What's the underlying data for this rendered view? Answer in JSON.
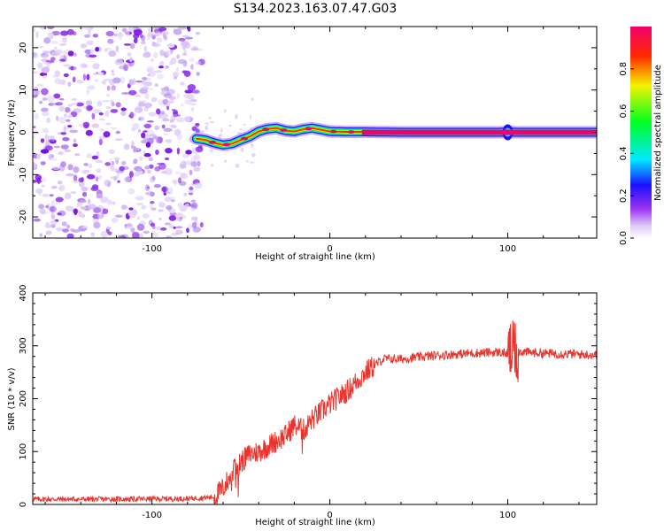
{
  "title": "S134.2023.163.07.47.G03",
  "chart_data": [
    {
      "type": "heatmap",
      "xlabel": "Height of straight line (km)",
      "ylabel": "Frequency (Hz)",
      "xlim": [
        -167,
        150
      ],
      "ylim": [
        -25,
        25
      ],
      "x_ticks": [
        -100,
        0,
        100
      ],
      "y_ticks": [
        -20,
        -10,
        0,
        10,
        20
      ],
      "noise_region_x": [
        -167,
        -72
      ],
      "ridge": {
        "x": [
          -75,
          -70,
          -65,
          -60,
          -55,
          -50,
          -45,
          -40,
          -35,
          -30,
          -25,
          -20,
          -15,
          -10,
          -5,
          0,
          10,
          20,
          40,
          60,
          80,
          95,
          100,
          105,
          120,
          150
        ],
        "freq": [
          -1.5,
          -1.8,
          -2.5,
          -3.0,
          -2.7,
          -1.8,
          -1.0,
          0.2,
          0.8,
          1.0,
          0.4,
          0.2,
          0.7,
          1.0,
          0.6,
          0.2,
          0.1,
          0.1,
          0.0,
          0.0,
          0.0,
          0.0,
          0.1,
          0.0,
          0.0,
          0.0
        ]
      },
      "colorbar": {
        "label": "Normalized spectral amplitude",
        "range": [
          0,
          1
        ],
        "ticks": [
          "0.0",
          "0.2",
          "0.4",
          "0.6",
          "0.8"
        ]
      }
    },
    {
      "type": "line",
      "xlabel": "Height of straight line (km)",
      "ylabel": "SNR (10 * v/v)",
      "xlim": [
        -167,
        150
      ],
      "ylim": [
        0,
        400
      ],
      "x_ticks": [
        -100,
        0,
        100
      ],
      "y_ticks": [
        0,
        100,
        200,
        300,
        400
      ],
      "series": [
        {
          "color": "#e8342c",
          "x": [
            -167,
            -120,
            -80,
            -65,
            -60,
            -55,
            -50,
            -45,
            -40,
            -35,
            -30,
            -25,
            -20,
            -15,
            -10,
            -5,
            0,
            10,
            20,
            30,
            40,
            60,
            80,
            95,
            100,
            105,
            110,
            120,
            150
          ],
          "values": [
            10,
            10,
            11,
            14,
            30,
            60,
            80,
            95,
            100,
            110,
            120,
            130,
            150,
            140,
            160,
            175,
            190,
            215,
            250,
            275,
            275,
            282,
            286,
            288,
            285,
            290,
            288,
            286,
            283
          ]
        }
      ]
    }
  ]
}
